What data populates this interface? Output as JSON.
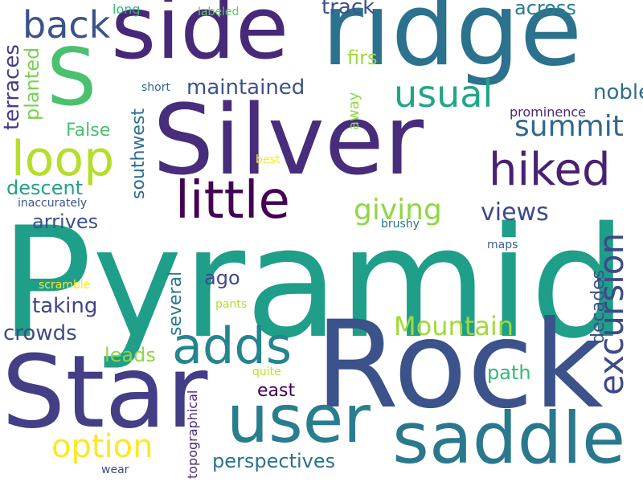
{
  "words": [
    {
      "text": "Pyramid",
      "color": "#1f9e89",
      "orientation": "horizontal"
    },
    {
      "text": "Rock",
      "color": "#3b528b",
      "orientation": "horizontal"
    },
    {
      "text": "Silver",
      "color": "#472d7b",
      "orientation": "horizontal"
    },
    {
      "text": "Star",
      "color": "#433e85",
      "orientation": "horizontal"
    },
    {
      "text": "ridge",
      "color": "#2c728e",
      "orientation": "horizontal"
    },
    {
      "text": "side",
      "color": "#482878",
      "orientation": "horizontal"
    },
    {
      "text": "S",
      "color": "#4ac16d",
      "orientation": "horizontal"
    },
    {
      "text": "saddle",
      "color": "#2a788e",
      "orientation": "horizontal"
    },
    {
      "text": "user",
      "color": "#287d8e",
      "orientation": "horizontal"
    },
    {
      "text": "adds",
      "color": "#25858e",
      "orientation": "horizontal"
    },
    {
      "text": "little",
      "color": "#440154",
      "orientation": "horizontal"
    },
    {
      "text": "loop",
      "color": "#b5de2b",
      "orientation": "horizontal"
    },
    {
      "text": "hiked",
      "color": "#482173",
      "orientation": "horizontal"
    },
    {
      "text": "excursion",
      "color": "#3e4989",
      "orientation": "vertical"
    },
    {
      "text": "back",
      "color": "#3b528b",
      "orientation": "horizontal"
    },
    {
      "text": "usual",
      "color": "#21a685",
      "orientation": "horizontal"
    },
    {
      "text": "summit",
      "color": "#31688e",
      "orientation": "horizontal"
    },
    {
      "text": "option",
      "color": "#fde725",
      "orientation": "horizontal"
    },
    {
      "text": "Mountain",
      "color": "#a0da39",
      "orientation": "horizontal"
    },
    {
      "text": "giving",
      "color": "#8fd744",
      "orientation": "horizontal"
    },
    {
      "text": "views",
      "color": "#3e4a89",
      "orientation": "horizontal"
    },
    {
      "text": "maintained",
      "color": "#3b528b",
      "orientation": "horizontal"
    },
    {
      "text": "track",
      "color": "#3b528b",
      "orientation": "horizontal"
    },
    {
      "text": "perspectives",
      "color": "#2c728e",
      "orientation": "horizontal"
    },
    {
      "text": "crowds",
      "color": "#3e4a89",
      "orientation": "horizontal"
    },
    {
      "text": "taking",
      "color": "#414487",
      "orientation": "horizontal"
    },
    {
      "text": "arrives",
      "color": "#3b528b",
      "orientation": "horizontal"
    },
    {
      "text": "descent",
      "color": "#20a386",
      "orientation": "horizontal"
    },
    {
      "text": "False",
      "color": "#4ac16d",
      "orientation": "horizontal"
    },
    {
      "text": "noble",
      "color": "#2e6e8e",
      "orientation": "horizontal"
    },
    {
      "text": "across",
      "color": "#277f8e",
      "orientation": "horizontal"
    },
    {
      "text": "path",
      "color": "#35b779",
      "orientation": "horizontal"
    },
    {
      "text": "east",
      "color": "#440154",
      "orientation": "horizontal"
    },
    {
      "text": "leads",
      "color": "#8fd744",
      "orientation": "horizontal"
    },
    {
      "text": "firs",
      "color": "#a0da39",
      "orientation": "horizontal"
    },
    {
      "text": "ago",
      "color": "#3e4989",
      "orientation": "horizontal"
    },
    {
      "text": "terraces",
      "color": "#433e85",
      "orientation": "vertical"
    },
    {
      "text": "planted",
      "color": "#7ad151",
      "orientation": "vertical"
    },
    {
      "text": "southwest",
      "color": "#2e6e8e",
      "orientation": "vertical"
    },
    {
      "text": "several",
      "color": "#2a788e",
      "orientation": "vertical"
    },
    {
      "text": "decades",
      "color": "#3b528b",
      "orientation": "vertical"
    },
    {
      "text": "away",
      "color": "#8fd744",
      "orientation": "vertical"
    },
    {
      "text": "topographical",
      "color": "#482878",
      "orientation": "vertical"
    },
    {
      "text": "long",
      "color": "#35b779",
      "orientation": "horizontal"
    },
    {
      "text": "labeled",
      "color": "#5ec962",
      "orientation": "horizontal"
    },
    {
      "text": "short",
      "color": "#31688e",
      "orientation": "horizontal"
    },
    {
      "text": "prominence",
      "color": "#482878",
      "orientation": "horizontal"
    },
    {
      "text": "best",
      "color": "#fde725",
      "orientation": "horizontal"
    },
    {
      "text": "inaccurately",
      "color": "#39568c",
      "orientation": "horizontal"
    },
    {
      "text": "brushy",
      "color": "#2c728e",
      "orientation": "horizontal"
    },
    {
      "text": "maps",
      "color": "#355f8d",
      "orientation": "horizontal"
    },
    {
      "text": "scramble",
      "color": "#fde725",
      "orientation": "horizontal"
    },
    {
      "text": "pants",
      "color": "#b5de2b",
      "orientation": "horizontal"
    },
    {
      "text": "quite",
      "color": "#c2df23",
      "orientation": "horizontal"
    },
    {
      "text": "wear",
      "color": "#3e4a89",
      "orientation": "horizontal"
    }
  ]
}
